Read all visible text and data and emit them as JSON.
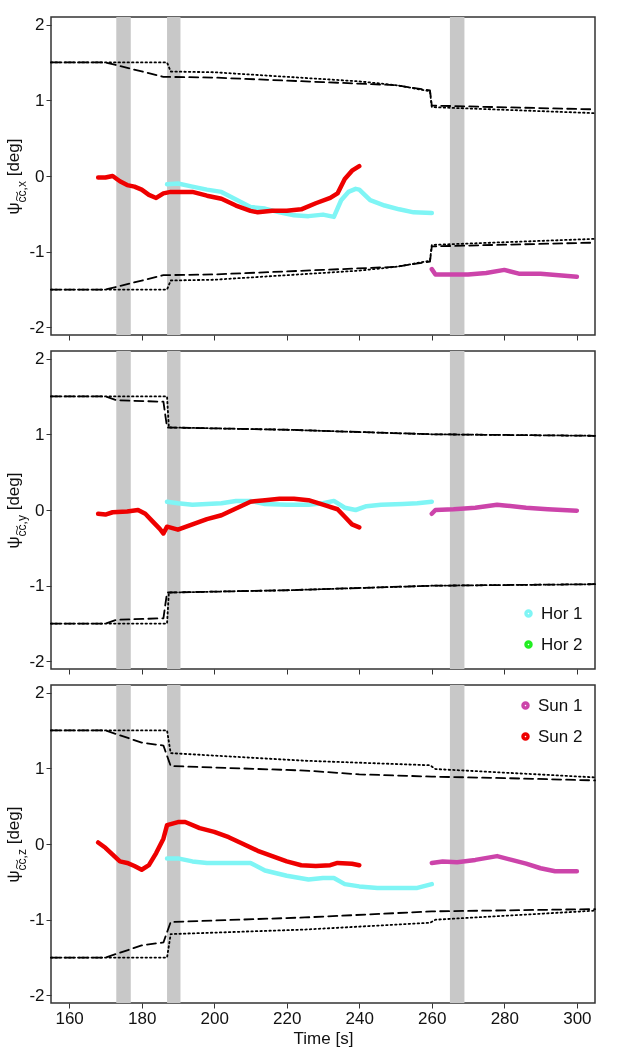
{
  "chart_data": [
    {
      "type": "line",
      "ylabel": "ψ$_{c͠c,x}$ [deg]",
      "xlim": [
        155,
        305
      ],
      "xticks": [
        160,
        180,
        200,
        220,
        240,
        260,
        280,
        300
      ],
      "ylim": [
        -2.1,
        2.1
      ],
      "yticks": [
        -2,
        -1,
        0,
        1,
        2
      ],
      "tick_labels": "y",
      "grid": false,
      "legend": false,
      "bands": [
        {
          "axis": "x",
          "from": 173,
          "to": 177,
          "color": "#c8c8c8"
        },
        {
          "axis": "x",
          "from": 187,
          "to": 190.7,
          "color": "#c8c8c8"
        },
        {
          "axis": "x",
          "from": 265,
          "to": 269,
          "color": "#c8c8c8"
        }
      ],
      "series": [
        {
          "type": "line",
          "color": "#000000",
          "line_style": "dotted",
          "x": [
            155,
            187,
            188,
            200,
            240,
            250,
            259.5,
            260,
            305
          ],
          "values": [
            1.5,
            1.5,
            1.38,
            1.37,
            1.25,
            1.2,
            1.12,
            0.91,
            0.83
          ]
        },
        {
          "type": "line",
          "color": "#000000",
          "line_style": "dashed",
          "x": [
            155,
            170,
            186,
            200,
            230,
            250,
            259.5,
            260,
            305
          ],
          "values": [
            1.5,
            1.5,
            1.31,
            1.3,
            1.24,
            1.2,
            1.13,
            0.93,
            0.88
          ]
        },
        {
          "type": "line",
          "color": "#000000",
          "line_style": "dotted",
          "x": [
            155,
            187,
            188,
            200,
            240,
            250,
            259.5,
            260,
            305
          ],
          "values": [
            -1.5,
            -1.5,
            -1.38,
            -1.37,
            -1.25,
            -1.2,
            -1.12,
            -0.91,
            -0.83
          ]
        },
        {
          "type": "line",
          "color": "#000000",
          "line_style": "dashed",
          "x": [
            155,
            170,
            186,
            200,
            230,
            250,
            259.5,
            260,
            305
          ],
          "values": [
            -1.5,
            -1.5,
            -1.31,
            -1.3,
            -1.24,
            -1.2,
            -1.13,
            -0.93,
            -0.88
          ]
        },
        {
          "type": "line",
          "color": "#7ff5f5",
          "x": [
            187,
            190,
            194,
            198,
            202,
            206,
            210,
            214,
            218,
            222,
            226,
            230,
            233,
            235,
            237,
            239,
            240,
            243,
            247,
            251,
            255,
            260
          ],
          "values": [
            -0.11,
            -0.1,
            -0.14,
            -0.18,
            -0.21,
            -0.31,
            -0.41,
            -0.43,
            -0.48,
            -0.52,
            -0.53,
            -0.51,
            -0.54,
            -0.32,
            -0.21,
            -0.17,
            -0.18,
            -0.32,
            -0.39,
            -0.44,
            -0.48,
            -0.49
          ]
        },
        {
          "type": "line",
          "color": "#cc44aa",
          "x": [
            260,
            261,
            265,
            270,
            275,
            280,
            284,
            290,
            295,
            300
          ],
          "values": [
            -1.23,
            -1.3,
            -1.3,
            -1.3,
            -1.28,
            -1.24,
            -1.29,
            -1.29,
            -1.31,
            -1.33
          ]
        },
        {
          "type": "line",
          "color": "#ee0000",
          "x": [
            168,
            170,
            172,
            174,
            176,
            178,
            180,
            182,
            184,
            186,
            188,
            190,
            194,
            198,
            202,
            206,
            210,
            212,
            216,
            220,
            224,
            228,
            232,
            234,
            236,
            238,
            240
          ],
          "values": [
            -0.02,
            -0.02,
            0.0,
            -0.07,
            -0.12,
            -0.14,
            -0.18,
            -0.25,
            -0.29,
            -0.23,
            -0.21,
            -0.21,
            -0.21,
            -0.26,
            -0.3,
            -0.39,
            -0.46,
            -0.48,
            -0.46,
            -0.46,
            -0.44,
            -0.36,
            -0.29,
            -0.23,
            -0.04,
            0.07,
            0.13
          ]
        }
      ]
    },
    {
      "type": "line",
      "ylabel": "ψ$_{c͠c,y}$ [deg]",
      "xlim": [
        155,
        305
      ],
      "xticks": [
        160,
        180,
        200,
        220,
        240,
        260,
        280,
        300
      ],
      "ylim": [
        -2.1,
        2.1
      ],
      "yticks": [
        -2,
        -1,
        0,
        1,
        2
      ],
      "tick_labels": "y",
      "grid": false,
      "legend": "bottom right",
      "bands": [
        {
          "axis": "x",
          "from": 173,
          "to": 177,
          "color": "#c8c8c8"
        },
        {
          "axis": "x",
          "from": 187,
          "to": 190.7,
          "color": "#c8c8c8"
        },
        {
          "axis": "x",
          "from": 265,
          "to": 269,
          "color": "#c8c8c8"
        }
      ],
      "series": [
        {
          "type": "line",
          "color": "#000000",
          "line_style": "dotted",
          "x": [
            155,
            187,
            187.5,
            220,
            260,
            305
          ],
          "values": [
            1.5,
            1.5,
            1.09,
            1.06,
            1.0,
            0.98
          ]
        },
        {
          "type": "line",
          "color": "#000000",
          "line_style": "dashed",
          "x": [
            155,
            170,
            173,
            186,
            187,
            220,
            260,
            305
          ],
          "values": [
            1.5,
            1.5,
            1.45,
            1.43,
            1.09,
            1.06,
            1.0,
            0.98
          ]
        },
        {
          "type": "line",
          "color": "#000000",
          "line_style": "dotted",
          "x": [
            155,
            187,
            187.5,
            220,
            260,
            305
          ],
          "values": [
            -1.5,
            -1.5,
            -1.09,
            -1.06,
            -1.0,
            -0.98
          ]
        },
        {
          "type": "line",
          "color": "#000000",
          "line_style": "dashed",
          "x": [
            155,
            170,
            173,
            186,
            187,
            220,
            260,
            305
          ],
          "values": [
            -1.5,
            -1.5,
            -1.45,
            -1.43,
            -1.09,
            -1.06,
            -1.0,
            -0.98
          ]
        },
        {
          "type": "line",
          "name": "Hor 1",
          "color": "#7ff5f5",
          "x": [
            187,
            190,
            194,
            198,
            202,
            206,
            210,
            214,
            220,
            226,
            230,
            233,
            236,
            239,
            242,
            246,
            252,
            256,
            260
          ],
          "values": [
            0.11,
            0.09,
            0.07,
            0.08,
            0.09,
            0.12,
            0.12,
            0.08,
            0.07,
            0.07,
            0.09,
            0.12,
            0.03,
            0.0,
            0.05,
            0.07,
            0.08,
            0.09,
            0.11
          ]
        },
        {
          "type": "line",
          "name": "Hor 2",
          "color": "#22ee22"
        },
        {
          "type": "line",
          "color": "#cc44aa",
          "x": [
            260,
            261,
            266,
            272,
            278,
            280,
            286,
            292,
            300
          ],
          "values": [
            -0.05,
            0.0,
            0.01,
            0.03,
            0.07,
            0.06,
            0.03,
            0.01,
            -0.01
          ]
        },
        {
          "type": "line",
          "color": "#ee0000",
          "x": [
            168,
            170,
            172,
            176,
            179,
            181,
            183,
            185,
            186,
            187,
            190,
            194,
            198,
            202,
            206,
            210,
            214,
            218,
            222,
            226,
            230,
            234,
            236,
            238,
            240
          ],
          "values": [
            -0.05,
            -0.06,
            -0.03,
            -0.02,
            0.0,
            -0.05,
            -0.15,
            -0.25,
            -0.31,
            -0.22,
            -0.26,
            -0.19,
            -0.12,
            -0.07,
            0.02,
            0.11,
            0.13,
            0.15,
            0.15,
            0.13,
            0.07,
            0.01,
            -0.09,
            -0.19,
            -0.23
          ]
        }
      ]
    },
    {
      "type": "line",
      "xlabel": "Time [s]",
      "ylabel": "ψ$_{c͠c,z}$ [deg]",
      "xlim": [
        155,
        305
      ],
      "xticks": [
        160,
        180,
        200,
        220,
        240,
        260,
        280,
        300
      ],
      "ylim": [
        -2.1,
        2.1
      ],
      "yticks": [
        -2,
        -1,
        0,
        1,
        2
      ],
      "grid": false,
      "legend": "top right",
      "bands": [
        {
          "axis": "x",
          "from": 173,
          "to": 177,
          "color": "#c8c8c8"
        },
        {
          "axis": "x",
          "from": 187,
          "to": 190.7,
          "color": "#c8c8c8"
        },
        {
          "axis": "x",
          "from": 265,
          "to": 269,
          "color": "#c8c8c8"
        }
      ],
      "series": [
        {
          "type": "line",
          "color": "#000000",
          "line_style": "dotted",
          "x": [
            155,
            187,
            188,
            225,
            259.5,
            261,
            305
          ],
          "values": [
            1.5,
            1.5,
            1.2,
            1.1,
            1.04,
            0.99,
            0.88
          ]
        },
        {
          "type": "line",
          "color": "#000000",
          "line_style": "dashed",
          "x": [
            155,
            170,
            180,
            186,
            188,
            225,
            240,
            260,
            280,
            305
          ],
          "values": [
            1.5,
            1.5,
            1.34,
            1.3,
            1.03,
            0.97,
            0.92,
            0.89,
            0.87,
            0.84
          ]
        },
        {
          "type": "line",
          "color": "#000000",
          "line_style": "dotted",
          "x": [
            155,
            187,
            188,
            225,
            259.5,
            261,
            305
          ],
          "values": [
            -1.5,
            -1.5,
            -1.19,
            -1.13,
            -1.04,
            -1.0,
            -0.88
          ]
        },
        {
          "type": "line",
          "color": "#000000",
          "line_style": "dashed",
          "x": [
            155,
            170,
            180,
            186,
            188,
            225,
            260,
            305
          ],
          "values": [
            -1.5,
            -1.5,
            -1.34,
            -1.3,
            -1.03,
            -0.97,
            -0.89,
            -0.86
          ]
        },
        {
          "type": "line",
          "color": "#7ff5f5",
          "x": [
            187,
            190,
            194,
            198,
            204,
            210,
            214,
            220,
            226,
            230,
            233,
            236,
            240,
            245,
            250,
            256,
            260
          ],
          "values": [
            -0.19,
            -0.19,
            -0.23,
            -0.25,
            -0.25,
            -0.25,
            -0.35,
            -0.42,
            -0.47,
            -0.45,
            -0.45,
            -0.53,
            -0.56,
            -0.58,
            -0.58,
            -0.58,
            -0.53
          ]
        },
        {
          "type": "line",
          "name": "Sun 1",
          "color": "#cc44aa",
          "x": [
            260,
            263,
            267,
            272,
            278,
            282,
            286,
            290,
            294,
            300
          ],
          "values": [
            -0.25,
            -0.23,
            -0.24,
            -0.21,
            -0.16,
            -0.21,
            -0.26,
            -0.32,
            -0.36,
            -0.36
          ]
        },
        {
          "type": "line",
          "name": "Sun 2",
          "color": "#ee0000",
          "x": [
            168,
            170,
            172,
            174,
            176,
            178,
            180,
            182,
            184,
            186,
            187,
            190,
            192,
            196,
            200,
            204,
            208,
            212,
            216,
            220,
            224,
            228,
            232,
            234,
            238,
            240
          ],
          "values": [
            0.02,
            -0.05,
            -0.14,
            -0.23,
            -0.25,
            -0.29,
            -0.34,
            -0.28,
            -0.12,
            0.07,
            0.25,
            0.29,
            0.29,
            0.21,
            0.16,
            0.09,
            0.0,
            -0.09,
            -0.16,
            -0.23,
            -0.28,
            -0.29,
            -0.28,
            -0.25,
            -0.26,
            -0.28
          ]
        }
      ]
    }
  ]
}
